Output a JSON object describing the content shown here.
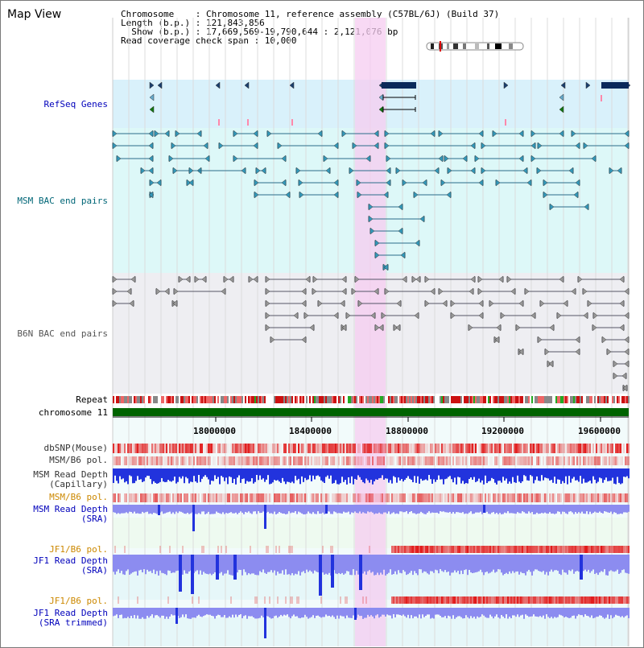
{
  "page": {
    "title": "Map View",
    "info": {
      "chromosome_line": "Chromosome    : Chromosome 11, reference assembly (C57BL/6J) (Build 37)",
      "length_line": "Length (b.p.) : 121,843,856",
      "show_line": "  Show (b.p.) : 17,669,569-19,790,644 : 2,121,076 bp",
      "coverage_line": "Read coverage check span : 10,000"
    }
  },
  "colors": {
    "refseq_bg": "#d9f1fb",
    "msm_bac_bg": "#ddf8f8",
    "b6n_bac_bg": "#eeeef2",
    "highlight": "#f5ccf0",
    "chromosome_bar": "#006400",
    "depth_blue": "#2233dd",
    "depth_light": "#8c8cf0",
    "snp_red": "#e11818",
    "label_blue": "#0000bb",
    "label_orange": "#cc8800"
  },
  "tracks": {
    "refseq": "RefSeq Genes",
    "msm_bac": "MSM BAC end pairs",
    "b6n_bac": "B6N BAC end pairs",
    "repeat": "Repeat",
    "chromosome": "chromosome 11",
    "dbsnp": "dbSNP(Mouse)",
    "msm_b6_pol_1": "MSM/B6 pol.",
    "msm_depth_cap_1": "MSM Read Depth",
    "msm_depth_cap_2": "(Capillary)",
    "msm_b6_pol_2": "MSM/B6 pol.",
    "msm_depth_sra_1": "MSM Read Depth",
    "msm_depth_sra_2": "(SRA)",
    "jf1_b6_pol_1": "JF1/B6 pol.",
    "jf1_depth_sra_1": "JF1 Read Depth",
    "jf1_depth_sra_2": "(SRA)",
    "jf1_b6_pol_2": "JF1/B6 pol.",
    "jf1_depth_trim_1": "JF1 Read Depth",
    "jf1_depth_trim_2": "(SRA trimmed)"
  },
  "axis": {
    "ticks": [
      "18000000",
      "18400000",
      "18800000",
      "19200000",
      "19600000"
    ]
  }
}
